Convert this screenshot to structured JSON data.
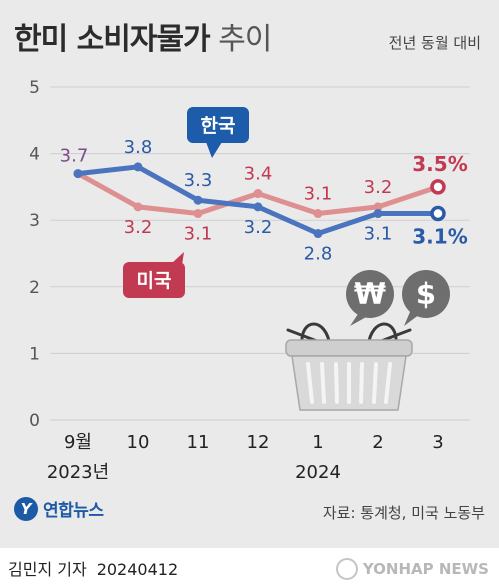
{
  "header": {
    "title_bold": "한미 소비자물가",
    "title_light": " 추이",
    "subtitle": "전년 동월 대비"
  },
  "chart_data": {
    "type": "line",
    "title": "한미 소비자물가 추이",
    "subtitle": "전년 동월 대비",
    "categories": [
      "9월",
      "10",
      "11",
      "12",
      "1",
      "2",
      "3"
    ],
    "year_labels": [
      {
        "index": 0,
        "text": "2023년"
      },
      {
        "index": 4,
        "text": "2024"
      }
    ],
    "yticks": [
      "0",
      "1",
      "2",
      "3",
      "4",
      "5"
    ],
    "ylim": [
      0,
      5
    ],
    "grid": true,
    "series": [
      {
        "name": "한국",
        "color": "#4a74be",
        "label_color": "#2a5aa8",
        "values": [
          3.7,
          3.8,
          3.3,
          3.2,
          2.8,
          3.1,
          3.1
        ],
        "labels": [
          "3.7",
          "3.8",
          "3.3",
          "3.2",
          "2.8",
          "3.1",
          "3.1%"
        ]
      },
      {
        "name": "미국",
        "color": "#de8f8f",
        "label_color": "#c23a52",
        "values": [
          3.7,
          3.2,
          3.1,
          3.4,
          3.1,
          3.2,
          3.5
        ],
        "labels": [
          "3.7",
          "3.2",
          "3.1",
          "3.4",
          "3.1",
          "3.2",
          "3.5%"
        ]
      }
    ],
    "first_point_label_color": "#7d4a8a"
  },
  "colors": {
    "background": "#eaeaea",
    "korea_box": "#1d5bab",
    "us_box": "#c23a52",
    "grid": "#cfcfcf",
    "axis_text": "#555555"
  },
  "illustration": {
    "coin_symbols": [
      "₩",
      "$"
    ]
  },
  "footer": {
    "logo_text": "연합뉴스",
    "source": "자료: 통계청, 미국 노동부",
    "reporter": "김민지 기자",
    "date": "20240412",
    "agency": "YONHAP NEWS"
  }
}
